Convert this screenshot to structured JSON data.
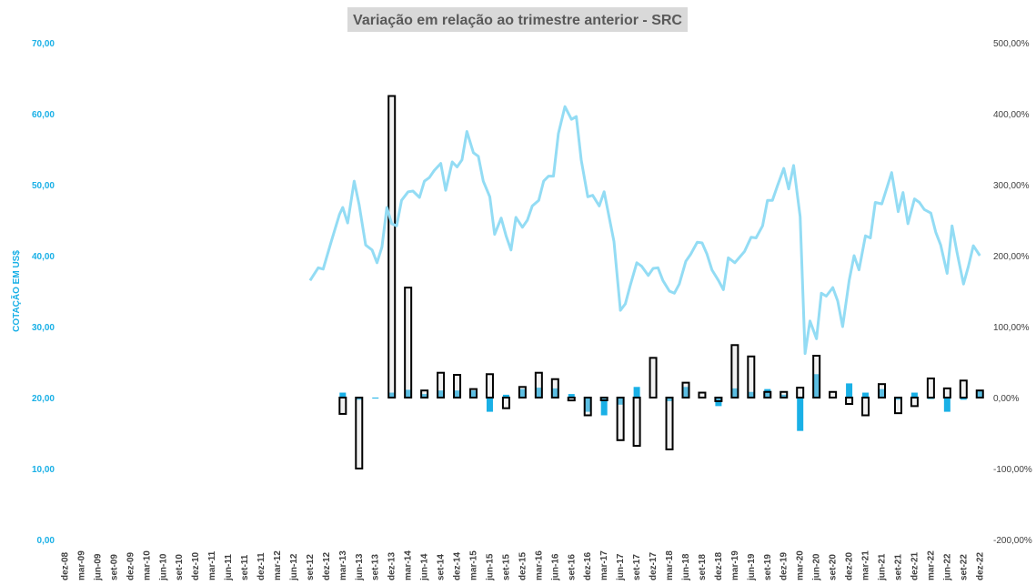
{
  "chart_data": {
    "type": "bar",
    "title": "Variação em relação ao trimestre anterior - SRC",
    "ylabel_left": "COTAÇÃO EM US$",
    "ylim_left": [
      0,
      70
    ],
    "yticks_left": [
      "0,00",
      "10,00",
      "20,00",
      "30,00",
      "40,00",
      "50,00",
      "60,00",
      "70,00"
    ],
    "ylim_right": [
      -200,
      500
    ],
    "yticks_right": [
      "-200,00%",
      "-100,00%",
      "0,00%",
      "100,00%",
      "200,00%",
      "300,00%",
      "400,00%",
      "500,00%"
    ],
    "categories": [
      "dez-08",
      "mar-09",
      "jun-09",
      "set-09",
      "dez-09",
      "mar-10",
      "jun-10",
      "set-10",
      "dez-10",
      "mar-11",
      "jun-11",
      "set-11",
      "dez-11",
      "mar-12",
      "jun-12",
      "set-12",
      "dez-12",
      "mar-13",
      "jun-13",
      "set-13",
      "dez-13",
      "mar-14",
      "jun-14",
      "set-14",
      "dez-14",
      "mar-15",
      "jun-15",
      "set-15",
      "dez-15",
      "mar-16",
      "jun-16",
      "set-16",
      "dez-16",
      "mar-17",
      "jun-17",
      "set-17",
      "dez-17",
      "mar-18",
      "jun-18",
      "set-18",
      "dez-18",
      "mar-19",
      "jun-19",
      "set-19",
      "dez-19",
      "mar-20",
      "jun-20",
      "set-20",
      "dez-20",
      "mar-21",
      "jun-21",
      "set-21",
      "dez-21",
      "mar-22",
      "jun-22",
      "set-22",
      "dez-22"
    ],
    "series": [
      {
        "kind": "bar",
        "axis": "right",
        "color": "#1ab0e6",
        "values": [
          null,
          null,
          null,
          null,
          null,
          null,
          null,
          null,
          null,
          null,
          null,
          null,
          null,
          null,
          null,
          null,
          null,
          7,
          -3,
          -1,
          7,
          11,
          5,
          10,
          10,
          10,
          -20,
          4,
          12,
          14,
          13,
          5,
          -20,
          -25,
          -10,
          15,
          -1,
          -5,
          15,
          1,
          -12,
          13,
          8,
          12,
          4,
          -47,
          33,
          1,
          20,
          7,
          12,
          -3,
          7,
          -2,
          -20,
          -3,
          9
        ]
      },
      {
        "kind": "bar",
        "axis": "right",
        "color": "#d9d9d9",
        "values": [
          null,
          null,
          null,
          null,
          null,
          null,
          null,
          null,
          null,
          null,
          null,
          null,
          null,
          null,
          null,
          null,
          null,
          -23,
          -100,
          null,
          425,
          155,
          10,
          35,
          32,
          12,
          33,
          -15,
          15,
          35,
          26,
          -4,
          -25,
          -2,
          -60,
          -68,
          56,
          -73,
          21,
          7,
          -5,
          74,
          58,
          8,
          8,
          14,
          59,
          8,
          -9,
          -25,
          19,
          -22,
          -12,
          27,
          13,
          24,
          10
        ]
      },
      {
        "kind": "line",
        "axis": "left",
        "color": "#93dcf4",
        "x": [
          15,
          15.5,
          15.8,
          16.3,
          16.8,
          17,
          17.3,
          17.7,
          18,
          18.4,
          18.8,
          19.1,
          19.4,
          19.7,
          20,
          20.3,
          20.6,
          21,
          21.3,
          21.7,
          22,
          22.3,
          22.6,
          23,
          23.3,
          23.7,
          24,
          24.3,
          24.6,
          25,
          25.3,
          25.6,
          26,
          26.3,
          26.7,
          27,
          27.3,
          27.6,
          28,
          28.3,
          28.6,
          29,
          29.3,
          29.6,
          29.9,
          30.2,
          30.6,
          31,
          31.3,
          31.6,
          32,
          32.3,
          32.7,
          33,
          33.3,
          33.6,
          34,
          34.3,
          34.6,
          35,
          35.3,
          35.7,
          36,
          36.3,
          36.6,
          37,
          37.3,
          37.6,
          38,
          38.3,
          38.7,
          39,
          39.3,
          39.6,
          40,
          40.3,
          40.6,
          41,
          41.3,
          41.6,
          42,
          42.3,
          42.7,
          43,
          43.3,
          43.6,
          44,
          44.3,
          44.6,
          45,
          45.3,
          45.6,
          46,
          46.3,
          46.6,
          47,
          47.3,
          47.6,
          48,
          48.3,
          48.6,
          49,
          49.3,
          49.6,
          50,
          50.3,
          50.6,
          51,
          51.3,
          51.6,
          52,
          52.3,
          52.6,
          53,
          53.3,
          53.6,
          54,
          54.3,
          54.6,
          55,
          55.3,
          55.6,
          56
        ],
        "values": [
          36.5,
          38.3,
          38.1,
          42,
          45.8,
          46.8,
          44.6,
          50.5,
          47.2,
          41.5,
          40.8,
          39,
          41.2,
          46.8,
          44.5,
          44.2,
          47.8,
          49,
          49.1,
          48.2,
          50.5,
          51,
          52,
          53,
          49.2,
          53.2,
          52.5,
          53.5,
          57.5,
          54.5,
          54,
          50.5,
          48.3,
          43,
          45.3,
          42.8,
          40.8,
          45.4,
          44,
          45,
          47,
          47.8,
          50.5,
          51.2,
          51.2,
          57.2,
          61,
          59.2,
          59.6,
          53.5,
          48.3,
          48.5,
          47,
          49,
          45.5,
          42,
          32.3,
          33.2,
          35.8,
          39,
          38.5,
          37.2,
          38.2,
          38.3,
          36.5,
          35,
          34.7,
          36,
          39.2,
          40.2,
          41.9,
          41.8,
          40.2,
          38,
          36.5,
          35.2,
          39.7,
          39,
          39.8,
          40.6,
          42.6,
          42.5,
          44.2,
          47.8,
          47.8,
          49.8,
          52.3,
          49.4,
          52.7,
          45.5,
          26.2,
          30.8,
          28.3,
          34.7,
          34.3,
          35.5,
          33.6,
          30,
          36.5,
          40,
          38,
          42.8,
          42.5,
          47.5,
          47.3,
          49.5,
          51.7,
          46.2,
          48.9,
          44.5,
          48,
          47.5,
          46.5,
          46,
          43.3,
          41.5,
          37.5,
          44.2,
          40.5,
          36,
          38.5,
          41.4,
          40
        ]
      }
    ]
  }
}
